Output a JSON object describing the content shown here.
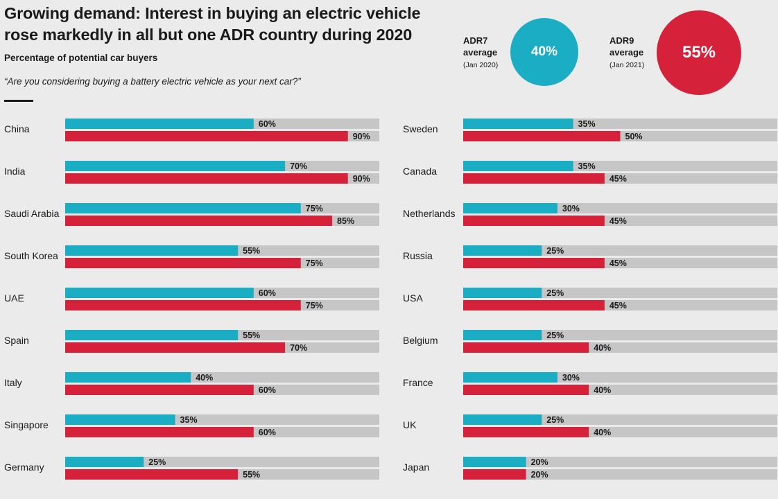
{
  "title": "Growing demand: Interest in buying an electric vehicle rose markedly in all but one ADR country during 2020",
  "subtitle": "Percentage of potential car buyers",
  "question": "“Are you considering buying a battery electric vehicle as your next car?”",
  "averages": [
    {
      "label": "ADR7",
      "label2": "average",
      "period": "(Jan 2020)",
      "value_text": "40%",
      "color": "#1aadc4"
    },
    {
      "label": "ADR9",
      "label2": "average",
      "period": "(Jan 2021)",
      "value_text": "55%",
      "color": "#d6213a"
    }
  ],
  "colors": {
    "adr7": "#1aadc4",
    "adr9": "#d6213a",
    "track": "#c6c6c6"
  },
  "chart_data": {
    "type": "bar",
    "orientation": "horizontal",
    "title": "Growing demand: Interest in buying an electric vehicle rose markedly in all but one ADR country during 2020",
    "xlim": [
      0,
      100
    ],
    "unit": "%",
    "series": [
      {
        "name": "ADR7 (Jan 2020)",
        "color": "#1aadc4"
      },
      {
        "name": "ADR9 (Jan 2021)",
        "color": "#d6213a"
      }
    ],
    "columns": [
      [
        {
          "country": "China",
          "adr7": 60,
          "adr9": 90
        },
        {
          "country": "India",
          "adr7": 70,
          "adr9": 90
        },
        {
          "country": "Saudi Arabia",
          "adr7": 75,
          "adr9": 85
        },
        {
          "country": "South Korea",
          "adr7": 55,
          "adr9": 75
        },
        {
          "country": "UAE",
          "adr7": 60,
          "adr9": 75
        },
        {
          "country": "Spain",
          "adr7": 55,
          "adr9": 70
        },
        {
          "country": "Italy",
          "adr7": 40,
          "adr9": 60
        },
        {
          "country": "Singapore",
          "adr7": 35,
          "adr9": 60
        },
        {
          "country": "Germany",
          "adr7": 25,
          "adr9": 55
        }
      ],
      [
        {
          "country": "Sweden",
          "adr7": 35,
          "adr9": 50
        },
        {
          "country": "Canada",
          "adr7": 35,
          "adr9": 45
        },
        {
          "country": "Netherlands",
          "adr7": 30,
          "adr9": 45
        },
        {
          "country": "Russia",
          "adr7": 25,
          "adr9": 45
        },
        {
          "country": "USA",
          "adr7": 25,
          "adr9": 45
        },
        {
          "country": "Belgium",
          "adr7": 25,
          "adr9": 40
        },
        {
          "country": "France",
          "adr7": 30,
          "adr9": 40
        },
        {
          "country": "UK",
          "adr7": 25,
          "adr9": 40
        },
        {
          "country": "Japan",
          "adr7": 20,
          "adr9": 20
        }
      ]
    ]
  }
}
